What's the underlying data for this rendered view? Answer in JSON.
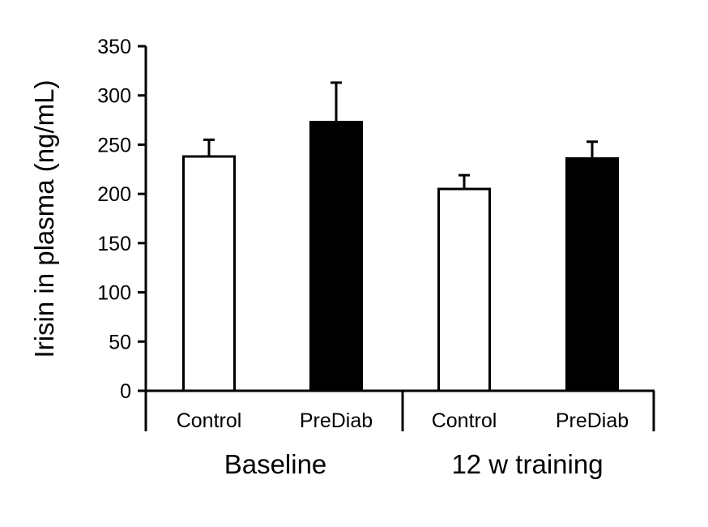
{
  "chart_data": {
    "type": "bar",
    "ylabel": "Irisin in plasma (ng/mL)",
    "ylim": [
      0,
      350
    ],
    "yticks": [
      0,
      50,
      100,
      150,
      200,
      250,
      300,
      350
    ],
    "ytick_labels": [
      "0",
      "50",
      "100",
      "150",
      "200",
      "250",
      "300",
      "350"
    ],
    "grid": false,
    "groups": [
      {
        "label": "Baseline",
        "bars": [
          {
            "category": "Control",
            "value": 238,
            "error": 17,
            "color": "#ffffff"
          },
          {
            "category": "PreDiab",
            "value": 273,
            "error": 40,
            "color": "#000000"
          }
        ]
      },
      {
        "label": "12 w training",
        "bars": [
          {
            "category": "Control",
            "value": 205,
            "error": 14,
            "color": "#ffffff"
          },
          {
            "category": "PreDiab",
            "value": 236,
            "error": 17,
            "color": "#000000"
          }
        ]
      }
    ]
  }
}
